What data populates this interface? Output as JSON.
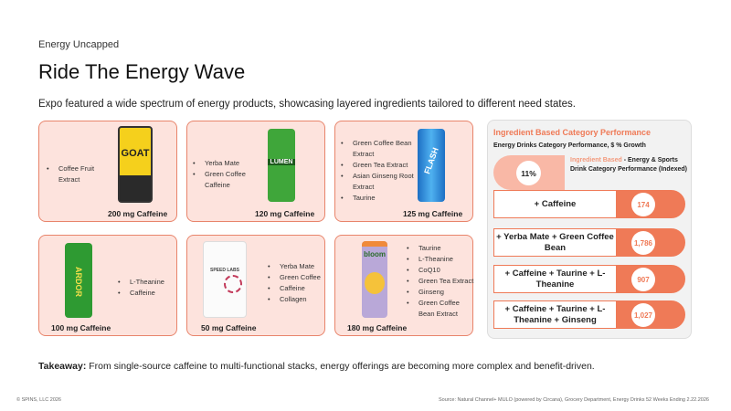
{
  "header": {
    "kicker": "Energy Uncapped",
    "title": "Ride The Energy Wave",
    "subtitle": "Expo featured a wide spectrum of energy products, showcasing layered ingredients tailored to different need states."
  },
  "products": [
    {
      "brand": "GOAT",
      "ingredients": [
        "Coffee Fruit Extract"
      ],
      "caffeine": "200 mg Caffeine"
    },
    {
      "brand": "LUMEN",
      "ingredients": [
        "Yerba Mate",
        "Green Coffee Caffeine"
      ],
      "caffeine": "120 mg Caffeine"
    },
    {
      "brand": "FLASH",
      "ingredients": [
        "Green Coffee Bean Extract",
        "Green Tea Extract",
        "Asian Ginseng Root Extract",
        "Taurine"
      ],
      "caffeine": "125 mg Caffeine"
    },
    {
      "brand": "ARDOR",
      "ingredients": [
        "L-Theanine",
        "Caffeine"
      ],
      "caffeine": "100 mg Caffeine"
    },
    {
      "brand": "SPEED LABS",
      "ingredients": [
        "Yerba Mate",
        "Green Coffee",
        "Caffeine",
        "Collagen"
      ],
      "caffeine": "50 mg Caffeine"
    },
    {
      "brand": "bloom",
      "ingredients": [
        "Taurine",
        "L-Theanine",
        "CoQ10",
        "Green Tea Extract",
        "Ginseng",
        "Green Coffee Bean Extract"
      ],
      "caffeine": "180 mg Caffeine"
    }
  ],
  "panel": {
    "title": "Ingredient Based Category Performance",
    "subtitle": "Energy Drinks Category Performance, $ % Growth",
    "growth": "11%",
    "legend_highlight": "Ingredient Based",
    "legend_rest": " - Energy & Sports Drink Category Performance (Indexed)",
    "rows": [
      {
        "label": "+ Caffeine",
        "value": "174"
      },
      {
        "label": "+ Yerba Mate + Green Coffee Bean",
        "value": "1,786"
      },
      {
        "label": "+ Caffeine + Taurine + L-Theanine",
        "value": "907"
      },
      {
        "label": "+ Caffeine + Taurine + L-Theanine + Ginseng",
        "value": "1,027"
      }
    ],
    "accent": "#ef7a57"
  },
  "takeaway": {
    "label": "Takeaway:",
    "text": " From single-source caffeine to multi-functional stacks, energy offerings are becoming more complex and benefit-driven."
  },
  "footer": {
    "copyright": "© SPINS, LLC 2026",
    "source": "Source: Natural Channel+ MULO (powered by Circana), Grocery Department, Energy Drinks 52 Weeks Ending  2.22.2026"
  }
}
